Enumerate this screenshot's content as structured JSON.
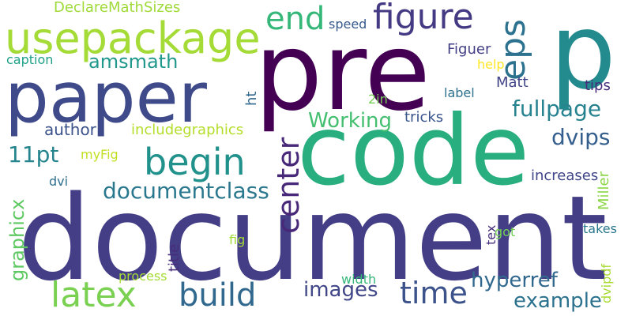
{
  "words": [
    {
      "text": "document",
      "color": "#433e85"
    },
    {
      "text": "code",
      "color": "#29af7f"
    },
    {
      "text": "pre",
      "color": "#440154"
    },
    {
      "text": "p",
      "color": "#238a8d"
    },
    {
      "text": "paper",
      "color": "#3e4a89"
    },
    {
      "text": "usepackage",
      "color": "#a5db36"
    },
    {
      "text": "figure",
      "color": "#443a83"
    },
    {
      "text": "end",
      "color": "#35b779"
    },
    {
      "text": "eps",
      "color": "#2c728e"
    },
    {
      "text": "begin",
      "color": "#21918c"
    },
    {
      "text": "latex",
      "color": "#7ad151"
    },
    {
      "text": "build",
      "color": "#31688e"
    },
    {
      "text": "time",
      "color": "#3b528b"
    },
    {
      "text": "center",
      "color": "#482878"
    },
    {
      "text": "documentclass",
      "color": "#2a788e"
    },
    {
      "text": "fullpage",
      "color": "#26828e"
    },
    {
      "text": "dvips",
      "color": "#355f8d"
    },
    {
      "text": "hyperref",
      "color": "#31688e"
    },
    {
      "text": "images",
      "color": "#404688"
    },
    {
      "text": "example",
      "color": "#2c728e"
    },
    {
      "text": "amsmath",
      "color": "#1f988b"
    },
    {
      "text": "Working",
      "color": "#44bf70"
    },
    {
      "text": "11pt",
      "color": "#25848e"
    },
    {
      "text": "graphicx",
      "color": "#5ec962"
    },
    {
      "text": "author",
      "color": "#3b528b"
    },
    {
      "text": "includegraphics",
      "color": "#b5de2b"
    },
    {
      "text": "DeclareMathSizes",
      "color": "#a0da39"
    },
    {
      "text": "speed",
      "color": "#375a8c"
    },
    {
      "text": "caption",
      "color": "#1f9f88"
    },
    {
      "text": "Figuer",
      "color": "#423f85"
    },
    {
      "text": "help",
      "color": "#fde725"
    },
    {
      "text": "Matt",
      "color": "#414487"
    },
    {
      "text": "tips",
      "color": "#472d7b"
    },
    {
      "text": "label",
      "color": "#2c718e"
    },
    {
      "text": "2in",
      "color": "#75d054"
    },
    {
      "text": "ht",
      "color": "#31688e"
    },
    {
      "text": "tricks",
      "color": "#3a548c"
    },
    {
      "text": "myFig",
      "color": "#c2df23"
    },
    {
      "text": "dvi",
      "color": "#2e6f8e"
    },
    {
      "text": "increases",
      "color": "#404588"
    },
    {
      "text": "Miller",
      "color": "#8bd646"
    },
    {
      "text": "tex",
      "color": "#472f7d"
    },
    {
      "text": "got",
      "color": "#73d056"
    },
    {
      "text": "takes",
      "color": "#2a788e"
    },
    {
      "text": "dvipdf",
      "color": "#a8db34"
    },
    {
      "text": "title",
      "color": "#472c7a"
    },
    {
      "text": "fig",
      "color": "#a2da37"
    },
    {
      "text": "process",
      "color": "#a5db36"
    },
    {
      "text": "width",
      "color": "#34b679"
    }
  ]
}
